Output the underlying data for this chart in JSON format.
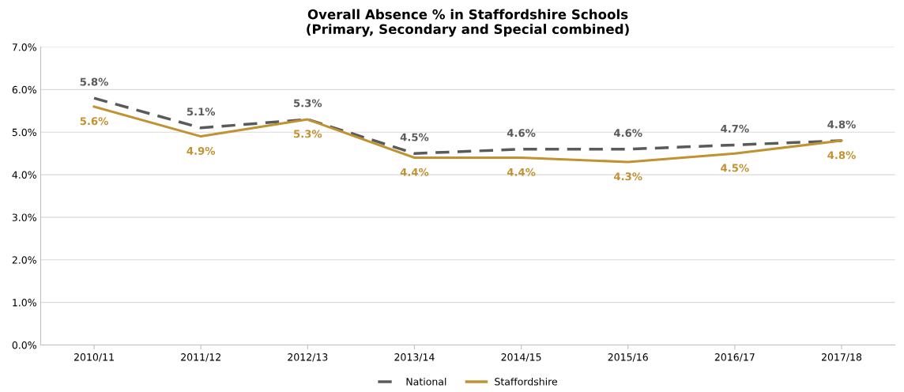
{
  "chart_data": {
    "type": "line",
    "title": "Overall Absence % in Staffordshire Schools\n(Primary, Secondary and Special combined)",
    "categories": [
      "2010/11",
      "2011/12",
      "2012/13",
      "2013/14",
      "2014/15",
      "2015/16",
      "2016/17",
      "2017/18"
    ],
    "series": [
      {
        "name": "National",
        "color": "#5a5a5a",
        "line_style": "dashed",
        "values": [
          5.8,
          5.1,
          5.3,
          4.5,
          4.6,
          4.6,
          4.7,
          4.8
        ],
        "value_labels": [
          "5.8%",
          "5.1%",
          "5.3%",
          "4.5%",
          "4.6%",
          "4.6%",
          "4.7%",
          "4.8%"
        ]
      },
      {
        "name": "Staffordshire",
        "color": "#c09232",
        "line_style": "solid",
        "values": [
          5.6,
          4.9,
          5.3,
          4.4,
          4.4,
          4.3,
          4.5,
          4.8
        ],
        "value_labels": [
          "5.6%",
          "4.9%",
          "5.3%",
          "4.4%",
          "4.4%",
          "4.3%",
          "4.5%",
          "4.8%"
        ]
      }
    ],
    "ylim": [
      0,
      7
    ],
    "yticks": [
      {
        "value": 0,
        "label": "0.0%"
      },
      {
        "value": 1,
        "label": "1.0%"
      },
      {
        "value": 2,
        "label": "2.0%"
      },
      {
        "value": 3,
        "label": "3.0%"
      },
      {
        "value": 4,
        "label": "4.0%"
      },
      {
        "value": 5,
        "label": "5.0%"
      },
      {
        "value": 6,
        "label": "6.0%"
      },
      {
        "value": 7,
        "label": "7.0%"
      }
    ],
    "grid": "y",
    "legend": "bottom",
    "marker": "none"
  }
}
